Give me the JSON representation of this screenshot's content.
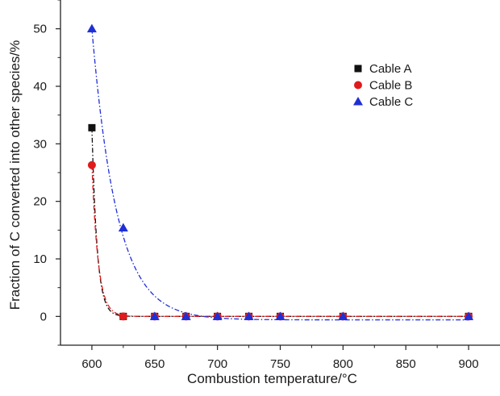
{
  "chart_data": {
    "type": "scatter",
    "xlabel": "Combustion temperature/°C",
    "ylabel": "Fraction of C converted into other species/%",
    "xlim": [
      575,
      925
    ],
    "ylim": [
      -5,
      55
    ],
    "x_ticks": [
      600,
      650,
      700,
      750,
      800,
      850,
      900
    ],
    "y_ticks": [
      0,
      10,
      20,
      30,
      40,
      50
    ],
    "grid": false,
    "legend_position": "top-right",
    "series": [
      {
        "name": "Cable A",
        "marker": "square",
        "color": "#111111",
        "line_style": "dash-dot",
        "x": [
          600,
          625,
          650,
          675,
          700,
          725,
          750,
          800,
          900
        ],
        "y": [
          32.8,
          0,
          0,
          0,
          0,
          0,
          0,
          0,
          0
        ]
      },
      {
        "name": "Cable B",
        "marker": "circle",
        "color": "#e01b1b",
        "line_style": "dash-dot",
        "x": [
          600,
          625,
          650,
          675,
          700,
          725,
          750,
          800,
          900
        ],
        "y": [
          26.3,
          0,
          0,
          0,
          0,
          0,
          0,
          0,
          0
        ]
      },
      {
        "name": "Cable C",
        "marker": "triangle",
        "color": "#1f2fd6",
        "line_style": "dash-dot",
        "x": [
          600,
          625,
          650,
          675,
          700,
          725,
          750,
          800,
          900
        ],
        "y": [
          50,
          15.4,
          0,
          0,
          0,
          0,
          0,
          0,
          0
        ]
      }
    ]
  }
}
